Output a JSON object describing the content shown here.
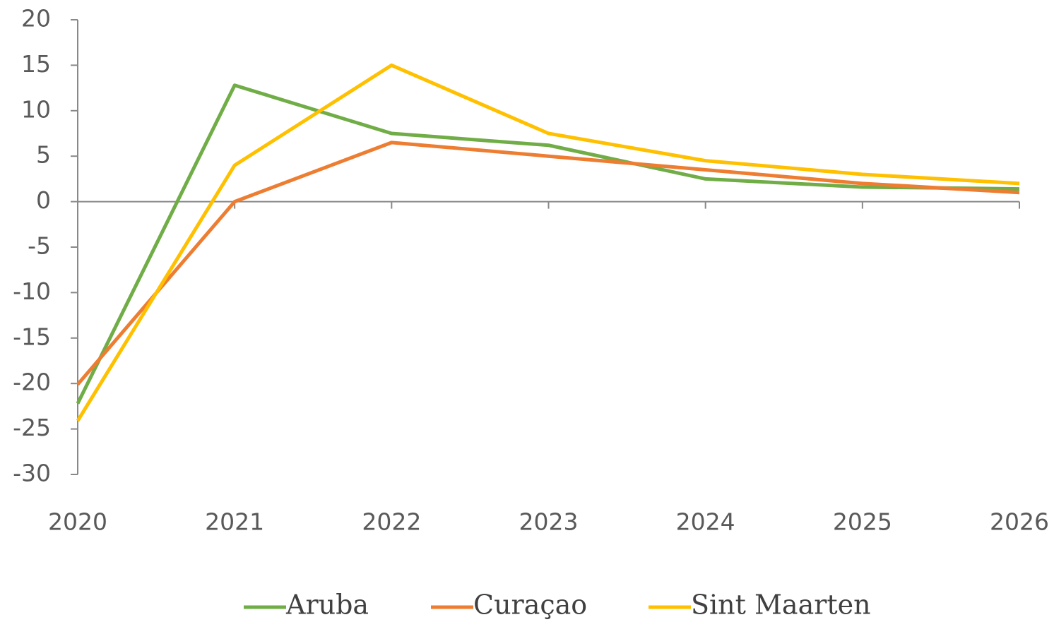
{
  "chart_data": {
    "type": "line",
    "categories": [
      "2020",
      "2021",
      "2022",
      "2023",
      "2024",
      "2025",
      "2026"
    ],
    "series": [
      {
        "name": "Aruba",
        "color": "#70ad47",
        "values": [
          -22.2,
          12.8,
          7.5,
          6.2,
          2.5,
          1.6,
          1.4
        ]
      },
      {
        "name": "Curaçao",
        "color": "#ed7d31",
        "values": [
          -20.1,
          0,
          6.5,
          5.0,
          3.5,
          2.0,
          1.0
        ]
      },
      {
        "name": "Sint Maarten",
        "color": "#ffc000",
        "values": [
          -24.1,
          4.0,
          15.0,
          7.5,
          4.5,
          3.0,
          2.0
        ]
      }
    ],
    "ylim": [
      -30,
      20
    ],
    "yticks": [
      -30,
      -25,
      -20,
      -15,
      -10,
      -5,
      0,
      5,
      10,
      15,
      20
    ],
    "grid": false,
    "legend": "bottom"
  }
}
